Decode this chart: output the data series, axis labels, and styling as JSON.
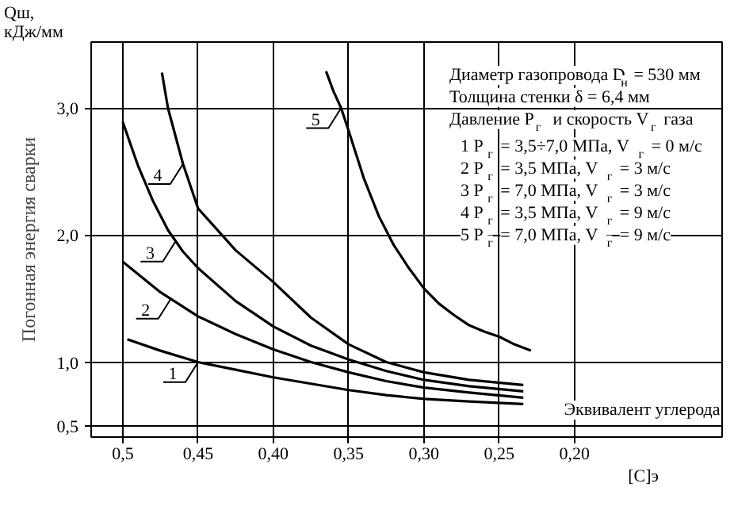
{
  "chart_data": {
    "type": "line",
    "xlabel": "Эквивалент углерода",
    "ylabel": "Погонная энергия сварки",
    "xlim": [
      0.521,
      0.102
    ],
    "ylim": [
      0.41,
      3.52
    ],
    "xticks": [
      {
        "value": 0.5,
        "label": "0,5"
      },
      {
        "value": 0.45,
        "label": "0,45"
      },
      {
        "value": 0.4,
        "label": "0,40"
      },
      {
        "value": 0.35,
        "label": "0,35"
      },
      {
        "value": 0.3,
        "label": "0,30"
      },
      {
        "value": 0.25,
        "label": "0,25"
      },
      {
        "value": 0.2,
        "label": "0,20"
      }
    ],
    "yticks": [
      {
        "value": 0.5,
        "label": "0,5"
      },
      {
        "value": 1.0,
        "label": "1,0"
      },
      {
        "value": 2.0,
        "label": "2,0"
      },
      {
        "value": 3.0,
        "label": "3,0"
      }
    ],
    "grid": true,
    "marker": "none",
    "line_style": "solid",
    "series": [
      {
        "color": "#000000",
        "x": [
          0.497,
          0.475,
          0.45,
          0.425,
          0.4,
          0.375,
          0.35,
          0.325,
          0.3,
          0.27,
          0.234
        ],
        "values": [
          1.18,
          1.09,
          1.0,
          0.94,
          0.88,
          0.83,
          0.78,
          0.74,
          0.71,
          0.69,
          0.67
        ]
      },
      {
        "color": "#000000",
        "x": [
          0.5,
          0.475,
          0.45,
          0.425,
          0.4,
          0.375,
          0.35,
          0.325,
          0.3,
          0.27,
          0.234
        ],
        "values": [
          1.79,
          1.55,
          1.36,
          1.22,
          1.1,
          1.0,
          0.92,
          0.85,
          0.8,
          0.76,
          0.72
        ]
      },
      {
        "color": "#000000",
        "x": [
          0.5,
          0.49,
          0.48,
          0.47,
          0.46,
          0.45,
          0.425,
          0.4,
          0.375,
          0.35,
          0.325,
          0.3,
          0.27,
          0.234
        ],
        "values": [
          2.89,
          2.55,
          2.27,
          2.04,
          1.87,
          1.74,
          1.48,
          1.28,
          1.13,
          1.02,
          0.93,
          0.86,
          0.81,
          0.77
        ]
      },
      {
        "color": "#000000",
        "x": [
          0.474,
          0.47,
          0.46,
          0.45,
          0.425,
          0.4,
          0.375,
          0.35,
          0.325,
          0.3,
          0.27,
          0.234
        ],
        "values": [
          3.28,
          3.0,
          2.56,
          2.21,
          1.88,
          1.63,
          1.35,
          1.14,
          1.0,
          0.92,
          0.86,
          0.82
        ]
      },
      {
        "color": "#000000",
        "x": [
          0.365,
          0.36,
          0.355,
          0.35,
          0.34,
          0.33,
          0.32,
          0.31,
          0.3,
          0.29,
          0.28,
          0.27,
          0.26,
          0.25,
          0.24,
          0.229
        ],
        "values": [
          3.29,
          3.13,
          3.0,
          2.82,
          2.45,
          2.15,
          1.92,
          1.74,
          1.58,
          1.46,
          1.37,
          1.29,
          1.24,
          1.2,
          1.14,
          1.09
        ]
      }
    ],
    "annotations": [
      "Qш, кДж/мм",
      "[C]э",
      "Диаметр газопровода D$_{н}$ = 530 мм",
      "Толщина стенки δ = 6,4 мм",
      "Давление  P$_{г}$  и  скорость V$_{г}$ газа",
      "1  P$_{г}$ = 3,5÷7,0  МПа,  V$_{г}$ = 0 м/с",
      "2  P$_{г}$ = 3,5  МПа,  V$_{г}$ = 3 м/с",
      "3  P$_{г}$ = 7,0  МПа,  V$_{г}$ = 3 м/с",
      "4  P$_{г}$ = 3,5  МПа,  V$_{г}$ = 9 м/с",
      "5  P$_{г}$ = 7,0  МПа,  V$_{г}$ = 9 м/с",
      {
        "text": "1",
        "x": 0.45,
        "y": 1.0
      },
      {
        "text": "2",
        "x": 0.468,
        "y": 1.5
      },
      {
        "text": "3",
        "x": 0.465,
        "y": 1.95
      },
      {
        "text": "4",
        "x": 0.46,
        "y": 2.56
      },
      {
        "text": "5",
        "x": 0.355,
        "y": 3.0
      }
    ]
  }
}
